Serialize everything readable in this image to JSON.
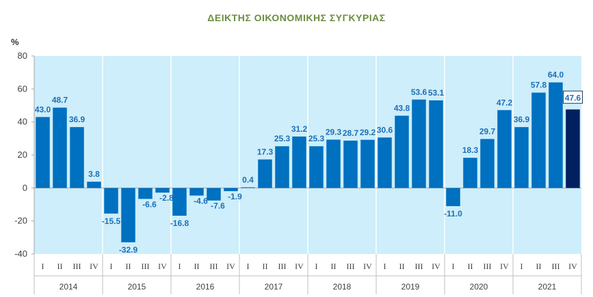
{
  "chart_data": {
    "type": "bar",
    "title": "ΔΕΙΚΤΗΣ ΟΙΚΟΝΟΜΙΚΗΣ ΣΥΓΚΥΡΙΑΣ",
    "ylabel": "%",
    "xlabel": "",
    "ylim": [
      -40,
      80
    ],
    "yticks": [
      -40,
      -20,
      0,
      20,
      40,
      60,
      80
    ],
    "quarters": [
      "I",
      "II",
      "III",
      "IV"
    ],
    "years": [
      "2014",
      "2015",
      "2016",
      "2017",
      "2018",
      "2019",
      "2020",
      "2021"
    ],
    "values": [
      43.0,
      48.7,
      36.9,
      3.8,
      -15.5,
      -32.9,
      -6.6,
      -2.8,
      -16.8,
      -4.6,
      -7.6,
      -1.9,
      0.4,
      17.3,
      25.3,
      31.2,
      25.3,
      29.3,
      28.7,
      29.2,
      30.6,
      43.8,
      53.6,
      53.1,
      -11.0,
      18.3,
      29.7,
      47.2,
      36.9,
      57.8,
      64.0,
      47.6
    ],
    "labels": [
      "43.0",
      "48.7",
      "36.9",
      "3.8",
      "-15.5",
      "-32.9",
      "-6.6",
      "-2.8",
      "-16.8",
      "-4.6",
      "-7.6",
      "-1.9",
      "0.4",
      "17.3",
      "25.3",
      "31.2",
      "25.3",
      "29.3",
      "28.7",
      "29.2",
      "30.6",
      "43.8",
      "53.6",
      "53.1",
      "-11.0",
      "18.3",
      "29.7",
      "47.2",
      "36.9",
      "57.8",
      "64.0",
      "47.6"
    ],
    "highlight_index": 31,
    "grid": false,
    "colors": {
      "bar": "#0070c0",
      "bar_highlight": "#002060",
      "label": "#1f6fb8",
      "plot_background": "#cdeefa",
      "separator": "#ffffff",
      "title": "#6b8e3e"
    }
  }
}
